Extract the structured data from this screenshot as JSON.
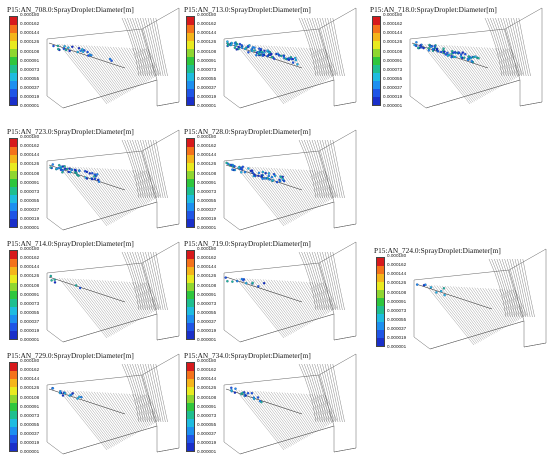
{
  "colorbar": {
    "ticks": [
      "0.000180",
      "0.000162",
      "0.000144",
      "0.000126",
      "0.000108",
      "0.000091",
      "0.000073",
      "0.000055",
      "0.000037",
      "0.000019",
      "0.000001"
    ],
    "colors": [
      "#d7191c",
      "#f5721b",
      "#f5b51b",
      "#e9ea20",
      "#8fd630",
      "#2fc63d",
      "#1fbf8f",
      "#1fbce0",
      "#1d8ff0",
      "#1f55e6",
      "#1a2fc9"
    ]
  },
  "panels": [
    {
      "title": "P15:AN_708.0:SprayDroplet:Diameter[m]",
      "dots": 22,
      "spread": 0.9
    },
    {
      "title": "P15:AN_713.0:SprayDroplet:Diameter[m]",
      "dots": 90,
      "spread": 1.0
    },
    {
      "title": "P15:AN_718.0:SprayDroplet:Diameter[m]",
      "dots": 70,
      "spread": 0.9
    },
    {
      "title": "P15:AN_723.0:SprayDroplet:Diameter[m]",
      "dots": 45,
      "spread": 0.7
    },
    {
      "title": "P15:AN_728.0:SprayDroplet:Diameter[m]",
      "dots": 55,
      "spread": 0.8
    },
    {
      "title": "P15:AN_714.0:SprayDroplet:Diameter[m]",
      "dots": 6,
      "spread": 0.4
    },
    {
      "title": "P15:AN_719.0:SprayDroplet:Diameter[m]",
      "dots": 12,
      "spread": 0.5
    },
    {
      "title": "P15:AN_724.0:SprayDroplet:Diameter[m]",
      "dots": 8,
      "spread": 0.4
    },
    {
      "title": "P15:AN_729.0:SprayDroplet:Diameter[m]",
      "dots": 14,
      "spread": 0.4
    },
    {
      "title": "P15:AN_734.0:SprayDroplet:Diameter[m]",
      "dots": 18,
      "spread": 0.5
    }
  ]
}
